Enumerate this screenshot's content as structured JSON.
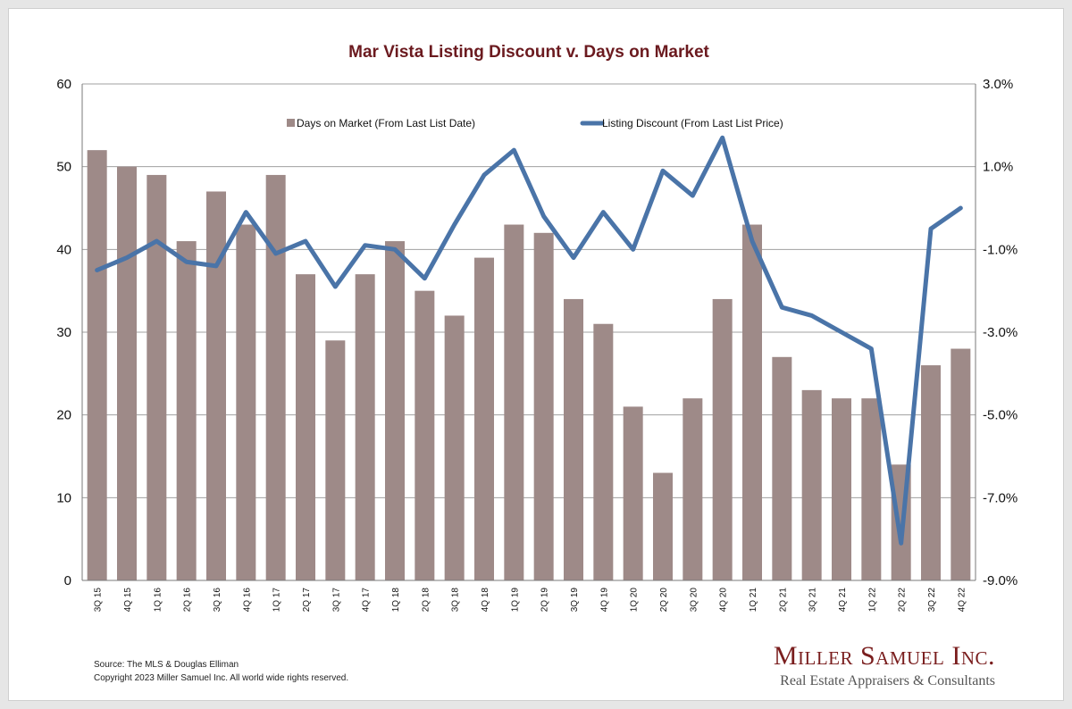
{
  "chart_data": {
    "type": "bar",
    "title": "Mar Vista Listing Discount v. Days on Market",
    "categories": [
      "3Q 15",
      "4Q 15",
      "1Q 16",
      "2Q 16",
      "3Q 16",
      "4Q 16",
      "1Q 17",
      "2Q 17",
      "3Q 17",
      "4Q 17",
      "1Q 18",
      "2Q 18",
      "3Q 18",
      "4Q 18",
      "1Q 19",
      "2Q 19",
      "3Q 19",
      "4Q 19",
      "1Q 20",
      "2Q 20",
      "3Q 20",
      "4Q 20",
      "1Q 21",
      "2Q 21",
      "3Q 21",
      "4Q 21",
      "1Q 22",
      "2Q 22",
      "3Q 22",
      "4Q 22"
    ],
    "series": [
      {
        "name": "Days on Market (From Last List Date)",
        "type": "bar",
        "axis": "left",
        "color": "#9e8a88",
        "values": [
          52,
          50,
          49,
          41,
          47,
          43,
          49,
          37,
          29,
          37,
          41,
          35,
          32,
          39,
          43,
          42,
          34,
          31,
          21,
          13,
          22,
          34,
          43,
          27,
          23,
          22,
          22,
          14,
          26,
          28
        ]
      },
      {
        "name": "Listing Discount (From Last List Price)",
        "type": "line",
        "axis": "right",
        "color": "#4a74a8",
        "values": [
          -1.5,
          -1.2,
          -0.8,
          -1.3,
          -1.4,
          -0.1,
          -1.1,
          -0.8,
          -1.9,
          -0.9,
          -1.0,
          -1.7,
          -0.4,
          0.8,
          1.4,
          -0.2,
          -1.2,
          -0.1,
          -1.0,
          0.9,
          0.3,
          1.7,
          -0.8,
          -2.4,
          -2.6,
          -3.0,
          -3.4,
          -8.1,
          -0.5,
          0.0
        ]
      }
    ],
    "y_left": {
      "ylim": [
        0,
        60
      ],
      "ticks": [
        0,
        10,
        20,
        30,
        40,
        50,
        60
      ]
    },
    "y_right": {
      "ylim": [
        -9.0,
        3.0
      ],
      "ticks": [
        "3.0%",
        "1.0%",
        "-1.0%",
        "-3.0%",
        "-5.0%",
        "-7.0%",
        "-9.0%"
      ]
    },
    "grid": true,
    "legend_placement": "top-center",
    "title_color": "#6b1a1f"
  },
  "footer": {
    "source": "Source: The MLS & Douglas Elliman",
    "copyright": "Copyright 2023 Miller Samuel Inc.  All world wide rights reserved."
  },
  "brand": {
    "name": "Miller Samuel Inc.",
    "tagline": "Real Estate Appraisers & Consultants"
  }
}
